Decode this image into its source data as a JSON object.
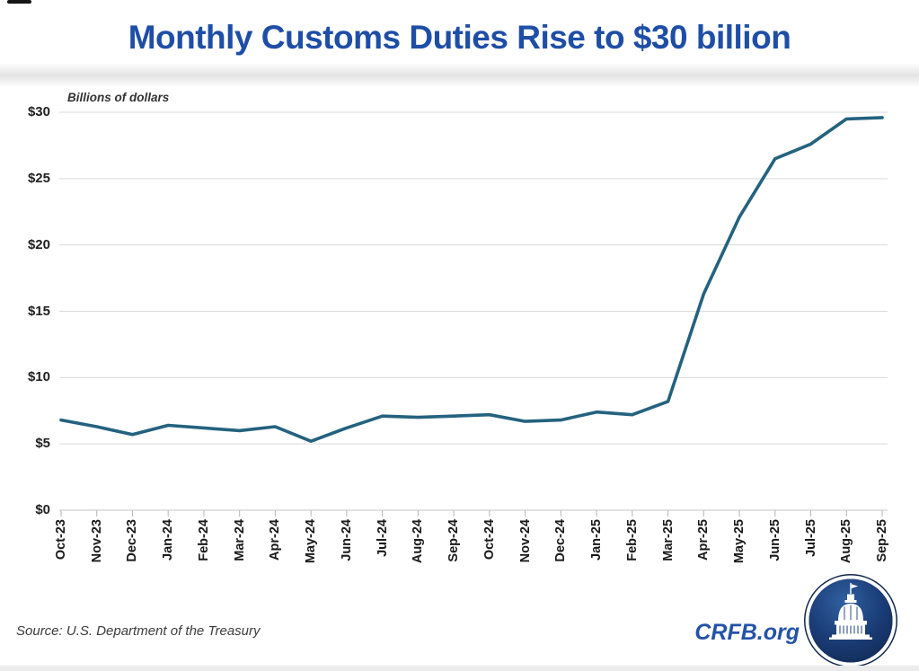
{
  "header": {
    "title": "Monthly Customs Duties Rise to $30 billion"
  },
  "chart_data": {
    "type": "line",
    "title": "Monthly Customs Duties Rise to $30 billion",
    "ylabel": "Billions of dollars",
    "xlabel": "",
    "categories": [
      "Oct-23",
      "Nov-23",
      "Dec-23",
      "Jan-24",
      "Feb-24",
      "Mar-24",
      "Apr-24",
      "May-24",
      "Jun-24",
      "Jul-24",
      "Aug-24",
      "Sep-24",
      "Oct-24",
      "Nov-24",
      "Dec-24",
      "Jan-25",
      "Feb-25",
      "Mar-25",
      "Apr-25",
      "May-25",
      "Jun-25",
      "Jul-25",
      "Aug-25",
      "Sep-25"
    ],
    "series": [
      {
        "name": "Monthly customs duties",
        "values": [
          6.8,
          6.3,
          5.7,
          6.4,
          6.2,
          6.0,
          6.3,
          5.2,
          6.2,
          7.1,
          7.0,
          7.1,
          7.2,
          6.7,
          6.8,
          7.4,
          7.2,
          8.2,
          16.3,
          22.1,
          26.5,
          27.6,
          29.5,
          29.6
        ]
      }
    ],
    "ylim": [
      0,
      30
    ],
    "y_ticks": [
      0,
      5,
      10,
      15,
      20,
      25,
      30
    ],
    "y_tick_labels": [
      "$0",
      "$5",
      "$10",
      "$15",
      "$20",
      "$25",
      "$30"
    ],
    "grid": "horizontal",
    "legend": "none"
  },
  "footer": {
    "source": "Source: U.S. Department of the Treasury",
    "brand": "CRFB.org",
    "logo_icon": "capitol-dome-logo"
  },
  "colors": {
    "title_blue": "#1e4ea6",
    "line": "#24627f",
    "gridline": "#d9d9d9",
    "axis": "#c6c6c6",
    "tick": "#b5b5b5",
    "brand_blue": "#2353a8",
    "logo_navy": "#1b3e78"
  }
}
